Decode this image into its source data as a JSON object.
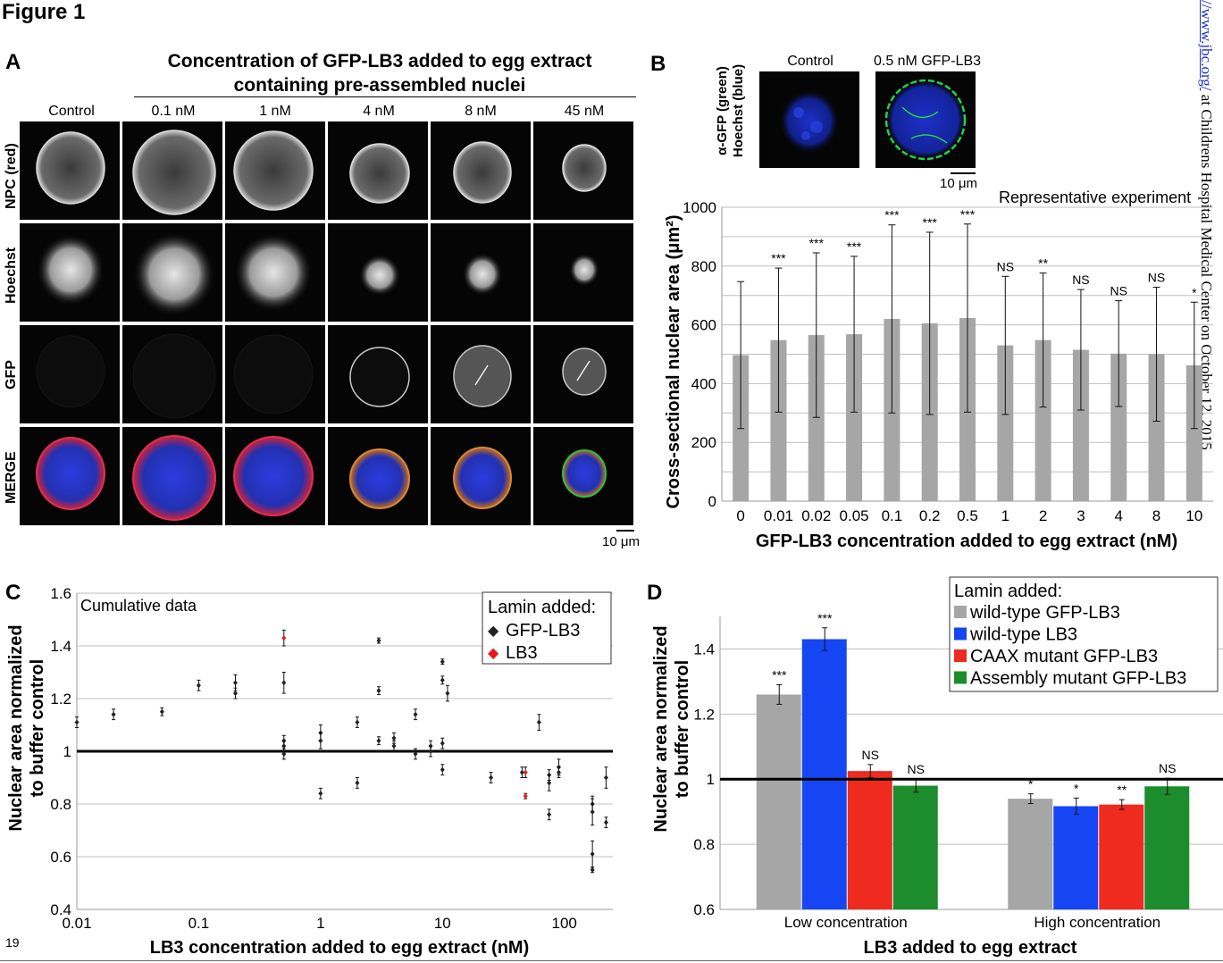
{
  "figure_title": "Figure 1",
  "side_text": {
    "url": "//www.jbc.org/",
    "rest": " at Childrens Hospital Medical Center on October 12, 2015"
  },
  "page_number": "19",
  "panel_a": {
    "letter": "A",
    "heading_line1": "Concentration of GFP-LB3 added to egg extract",
    "heading_line2": "containing pre-assembled nuclei",
    "columns": [
      "Control",
      "0.1 nM",
      "1 nM",
      "4 nM",
      "8 nM",
      "45 nM"
    ],
    "rows": [
      "NPC (red)",
      "Hoechst",
      "GFP",
      "MERGE"
    ],
    "scale_bar": "10 μm"
  },
  "panel_b": {
    "letter": "B",
    "inset_labels": [
      "Control",
      "0.5 nM GFP-LB3"
    ],
    "inset_ylabel_line1": "α-GFP (green)",
    "inset_ylabel_line2": "Hoechst (blue)",
    "inset_scale": "10 μm"
  },
  "panel_c": {
    "letter": "C"
  },
  "panel_d": {
    "letter": "D"
  },
  "chart_data": [
    {
      "id": "B",
      "type": "bar",
      "annotation": "Representative experiment",
      "ylabel": "Cross-sectional nuclear area (μm²)",
      "xlabel": "GFP-LB3 concentration added to egg extract (nM)",
      "categories": [
        "0",
        "0.01",
        "0.02",
        "0.05",
        "0.1",
        "0.2",
        "0.5",
        "1",
        "2",
        "3",
        "4",
        "8",
        "10"
      ],
      "values": [
        497,
        548,
        565,
        568,
        620,
        605,
        623,
        530,
        548,
        515,
        502,
        500,
        462
      ],
      "error": [
        250,
        245,
        280,
        265,
        320,
        310,
        320,
        235,
        228,
        205,
        180,
        228,
        215
      ],
      "significance": [
        "",
        "***",
        "***",
        "***",
        "***",
        "***",
        "***",
        "NS",
        "**",
        "NS",
        "NS",
        "NS",
        "*"
      ],
      "ylim": [
        0,
        1000
      ],
      "yticks": [
        "0",
        "200",
        "400",
        "600",
        "800",
        "1000"
      ],
      "bar_color": "#a6a6a6",
      "grid": true
    },
    {
      "id": "C",
      "type": "scatter",
      "annotation": "Cumulative data",
      "ylabel_line1": "Nuclear area normalized",
      "ylabel_line2": "to buffer control",
      "xlabel": "LB3 concentration added to egg extract (nM)",
      "xscale": "log",
      "xlim": [
        0.01,
        250
      ],
      "ylim": [
        0.4,
        1.6
      ],
      "xticks": [
        "0.01",
        "0.1",
        "1",
        "10",
        "100"
      ],
      "yticks": [
        "0.4",
        "0.6",
        "0.8",
        "1",
        "1.2",
        "1.4",
        "1.6"
      ],
      "reference_line": 1,
      "legend_title": "Lamin added:",
      "legend_position": "top-right",
      "series": [
        {
          "name": "GFP-LB3",
          "color": "#222222",
          "marker": "◆",
          "points": [
            [
              0.01,
              1.11,
              0.02
            ],
            [
              0.02,
              1.14,
              0.02
            ],
            [
              0.05,
              1.15,
              0.015
            ],
            [
              0.1,
              1.25,
              0.02
            ],
            [
              0.2,
              1.26,
              0.03
            ],
            [
              0.2,
              1.22,
              0.02
            ],
            [
              0.5,
              1.26,
              0.04
            ],
            [
              0.5,
              1.04,
              0.02
            ],
            [
              0.5,
              1.02,
              0.02
            ],
            [
              0.5,
              0.99,
              0.02
            ],
            [
              1,
              1.07,
              0.03
            ],
            [
              1,
              1.04,
              0.03
            ],
            [
              1,
              0.84,
              0.02
            ],
            [
              2,
              1.11,
              0.02
            ],
            [
              2,
              0.88,
              0.02
            ],
            [
              3,
              1.42,
              0.01
            ],
            [
              3,
              1.23,
              0.015
            ],
            [
              3,
              1.04,
              0.015
            ],
            [
              4,
              1.05,
              0.02
            ],
            [
              4,
              1.02,
              0.02
            ],
            [
              6,
              1.14,
              0.02
            ],
            [
              6,
              0.99,
              0.02
            ],
            [
              8,
              1.02,
              0.02
            ],
            [
              8,
              1.0,
              0.02
            ],
            [
              10,
              1.34,
              0.01
            ],
            [
              10,
              1.27,
              0.015
            ],
            [
              10,
              1.03,
              0.02
            ],
            [
              10,
              0.93,
              0.02
            ],
            [
              11,
              1.22,
              0.03
            ],
            [
              25,
              0.9,
              0.02
            ],
            [
              45,
              0.92,
              0.02
            ],
            [
              62,
              1.11,
              0.03
            ],
            [
              75,
              0.91,
              0.02
            ],
            [
              75,
              0.88,
              0.03
            ],
            [
              75,
              0.76,
              0.02
            ],
            [
              90,
              0.94,
              0.03
            ],
            [
              90,
              0.92,
              0.02
            ],
            [
              170,
              0.8,
              0.03
            ],
            [
              170,
              0.77,
              0.05
            ],
            [
              170,
              0.61,
              0.05
            ],
            [
              170,
              0.55,
              0.01
            ],
            [
              220,
              0.9,
              0.04
            ],
            [
              220,
              0.73,
              0.02
            ]
          ]
        },
        {
          "name": "LB3",
          "color": "#e8191b",
          "marker": "◆",
          "points": [
            [
              0.5,
              1.43,
              0.03
            ],
            [
              48,
              0.92,
              0.02
            ],
            [
              48,
              0.83,
              0.01
            ]
          ]
        }
      ]
    },
    {
      "id": "D",
      "type": "bar",
      "ylabel_line1": "Nuclear area normalized",
      "ylabel_line2": "to buffer control",
      "xlabel": "LB3 added to egg extract",
      "categories": [
        "Low concentration",
        "High concentration"
      ],
      "ylim": [
        0.6,
        1.5
      ],
      "yticks": [
        "0.6",
        "0.8",
        "1",
        "1.2",
        "1.4"
      ],
      "reference_line": 1,
      "legend_title": "Lamin added:",
      "legend_position": "top-right",
      "series": [
        {
          "name": "wild-type GFP-LB3",
          "color": "#a6a6a6",
          "values": [
            1.26,
            0.94
          ],
          "error": [
            0.03,
            0.015
          ],
          "significance": [
            "***",
            "*"
          ]
        },
        {
          "name": "wild-type LB3",
          "color": "#1646f4",
          "values": [
            1.43,
            0.917
          ],
          "error": [
            0.035,
            0.025
          ],
          "significance": [
            "***",
            "*"
          ]
        },
        {
          "name": "CAAX mutant GFP-LB3",
          "color": "#ee2b1e",
          "values": [
            1.025,
            0.922
          ],
          "error": [
            0.02,
            0.015
          ],
          "significance": [
            "NS",
            "**"
          ]
        },
        {
          "name": "Assembly mutant GFP-LB3",
          "color": "#1c8c2c",
          "values": [
            0.98,
            0.978
          ],
          "error": [
            0.02,
            0.025
          ],
          "significance": [
            "NS",
            "NS"
          ]
        }
      ]
    }
  ]
}
